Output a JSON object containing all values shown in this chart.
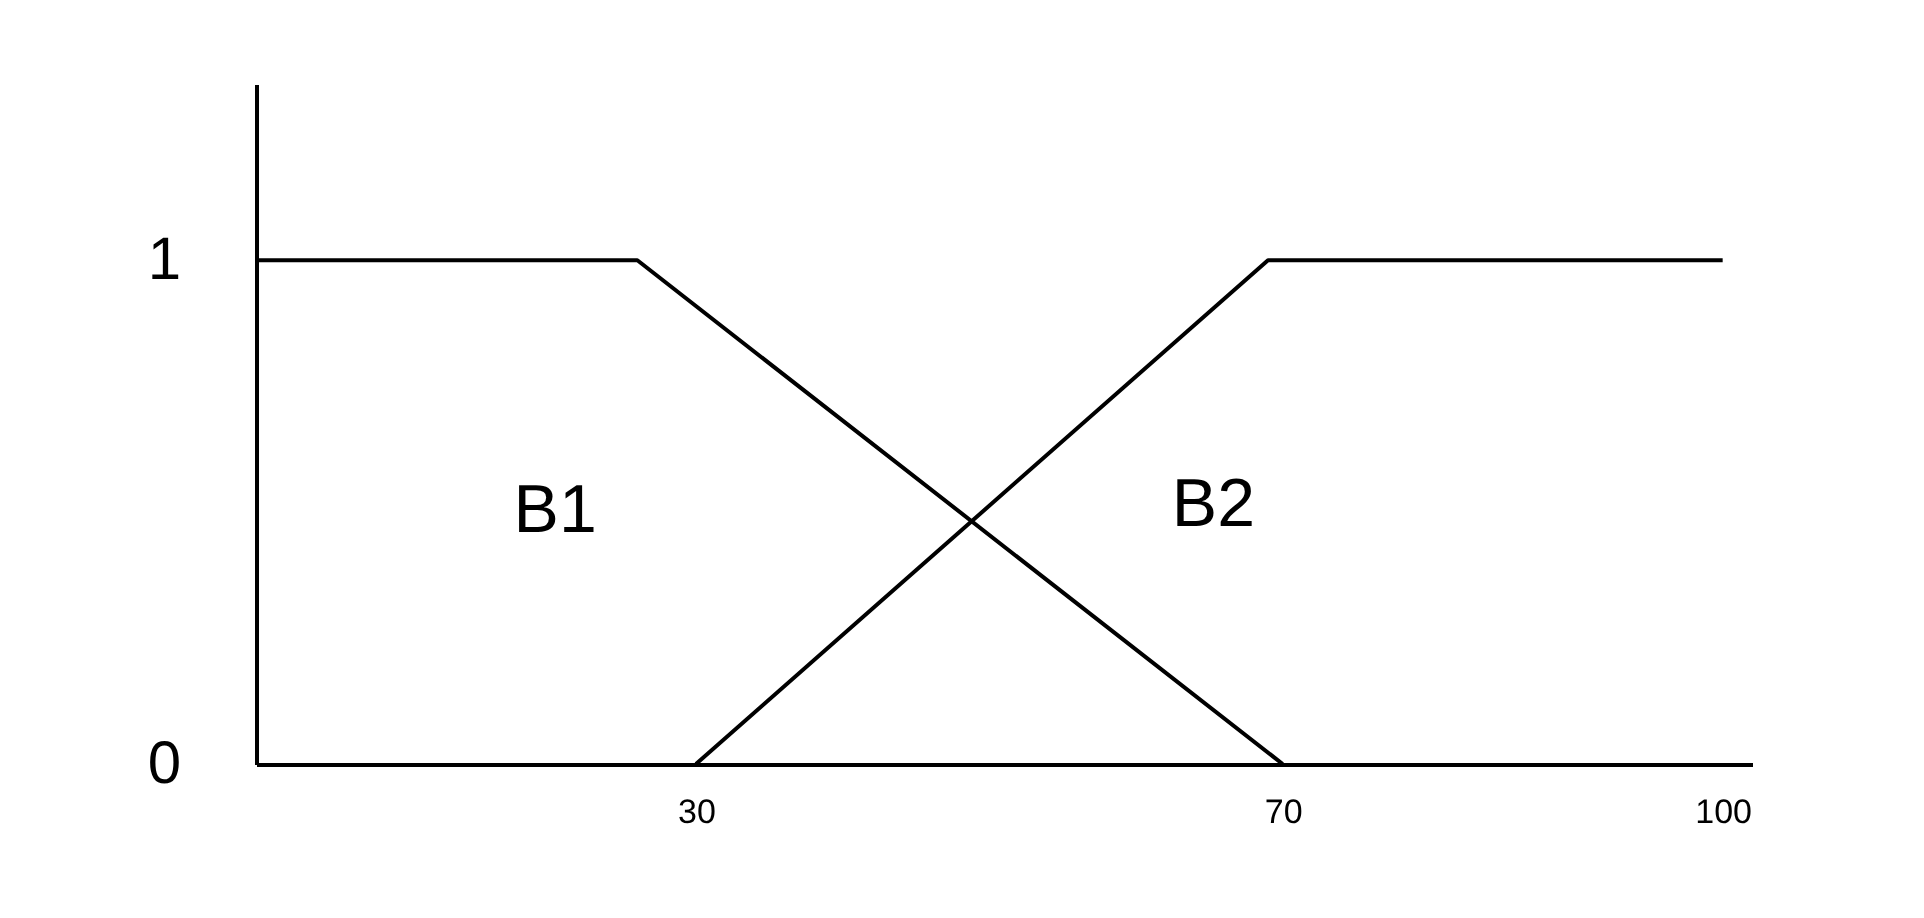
{
  "chart_data": {
    "type": "line",
    "xlim": [
      0,
      102
    ],
    "xticks": [
      30,
      70,
      100
    ],
    "ylim": [
      0,
      1.35
    ],
    "yticks": [
      {
        "value": 0,
        "label": "0"
      },
      {
        "value": 1,
        "label": "1"
      }
    ],
    "grid": false,
    "legend": false,
    "marker": "none",
    "line_style": "solid",
    "series": [
      {
        "color": "#000000",
        "x": [
          0,
          26,
          70
        ],
        "values": [
          1,
          1,
          0
        ]
      },
      {
        "color": "#000000",
        "x": [
          30,
          69,
          100
        ],
        "values": [
          0,
          1,
          1
        ]
      }
    ],
    "annotations": [
      "B1",
      "B2"
    ]
  }
}
